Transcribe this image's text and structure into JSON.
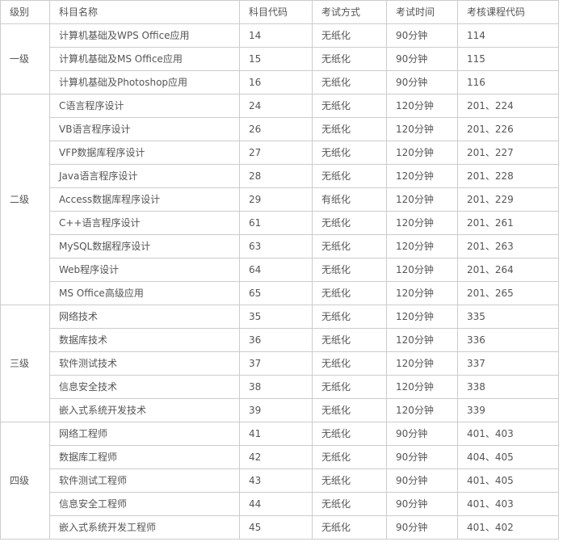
{
  "table": {
    "colors": {
      "border": "#cccccc",
      "text": "#555555",
      "background": "#ffffff"
    },
    "headers": [
      "级别",
      "科目名称",
      "科目代码",
      "考试方式",
      "考试时间",
      "考核课程代码"
    ],
    "groups": [
      {
        "level": "一级",
        "rows": [
          {
            "subject": "计算机基础及WPS Office应用",
            "code": "14",
            "method": "无纸化",
            "duration": "90分钟",
            "course_codes": "114"
          },
          {
            "subject": "计算机基础及MS Office应用",
            "code": "15",
            "method": "无纸化",
            "duration": "90分钟",
            "course_codes": "115"
          },
          {
            "subject": "计算机基础及Photoshop应用",
            "code": "16",
            "method": "无纸化",
            "duration": "90分钟",
            "course_codes": "116"
          }
        ]
      },
      {
        "level": "二级",
        "rows": [
          {
            "subject": "C语言程序设计",
            "code": "24",
            "method": "无纸化",
            "duration": "120分钟",
            "course_codes": "201、224"
          },
          {
            "subject": "VB语言程序设计",
            "code": "26",
            "method": "无纸化",
            "duration": "120分钟",
            "course_codes": "201、226"
          },
          {
            "subject": "VFP数据库程序设计",
            "code": "27",
            "method": "无纸化",
            "duration": "120分钟",
            "course_codes": "201、227"
          },
          {
            "subject": "Java语言程序设计",
            "code": "28",
            "method": "无纸化",
            "duration": "120分钟",
            "course_codes": "201、228"
          },
          {
            "subject": "Access数据库程序设计",
            "code": "29",
            "method": "有纸化",
            "duration": "120分钟",
            "course_codes": "201、229"
          },
          {
            "subject": "C++语言程序设计",
            "code": "61",
            "method": "无纸化",
            "duration": "120分钟",
            "course_codes": "201、261"
          },
          {
            "subject": "MySQL数据程序设计",
            "code": "63",
            "method": "无纸化",
            "duration": "120分钟",
            "course_codes": "201、263"
          },
          {
            "subject": "Web程序设计",
            "code": "64",
            "method": "无纸化",
            "duration": "120分钟",
            "course_codes": "201、264"
          },
          {
            "subject": "MS Office高级应用",
            "code": "65",
            "method": "无纸化",
            "duration": "120分钟",
            "course_codes": "201、265"
          }
        ]
      },
      {
        "level": "三级",
        "rows": [
          {
            "subject": "网络技术",
            "code": "35",
            "method": "无纸化",
            "duration": "120分钟",
            "course_codes": "335"
          },
          {
            "subject": "数据库技术",
            "code": "36",
            "method": "无纸化",
            "duration": "120分钟",
            "course_codes": "336"
          },
          {
            "subject": "软件测试技术",
            "code": "37",
            "method": "无纸化",
            "duration": "120分钟",
            "course_codes": "337"
          },
          {
            "subject": "信息安全技术",
            "code": "38",
            "method": "无纸化",
            "duration": "120分钟",
            "course_codes": "338"
          },
          {
            "subject": "嵌入式系统开发技术",
            "code": "39",
            "method": "无纸化",
            "duration": "120分钟",
            "course_codes": "339"
          }
        ]
      },
      {
        "level": "四级",
        "rows": [
          {
            "subject": "网络工程师",
            "code": "41",
            "method": "无纸化",
            "duration": "90分钟",
            "course_codes": "401、403"
          },
          {
            "subject": "数据库工程师",
            "code": "42",
            "method": "无纸化",
            "duration": "90分钟",
            "course_codes": "404、405"
          },
          {
            "subject": "软件测试工程师",
            "code": "43",
            "method": "无纸化",
            "duration": "90分钟",
            "course_codes": "401、405"
          },
          {
            "subject": "信息安全工程师",
            "code": "44",
            "method": "无纸化",
            "duration": "90分钟",
            "course_codes": "401、403"
          },
          {
            "subject": "嵌入式系统开发工程师",
            "code": "45",
            "method": "无纸化",
            "duration": "90分钟",
            "course_codes": "401、402"
          }
        ]
      }
    ]
  }
}
